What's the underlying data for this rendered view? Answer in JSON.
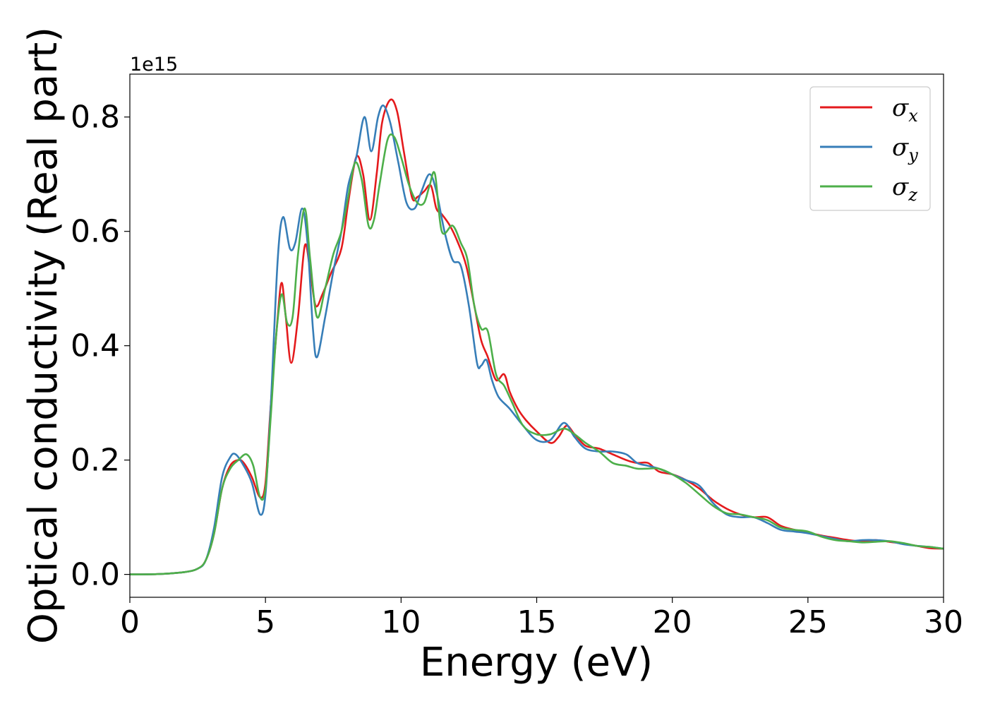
{
  "chart_data": {
    "type": "line",
    "xlabel": "Energy (eV)",
    "ylabel": "Optical conductivity (Real part)",
    "y_offset_label": "1e15",
    "xlim": [
      0,
      30
    ],
    "ylim": [
      -0.04,
      0.875
    ],
    "xticks": [
      "0",
      "5",
      "10",
      "15",
      "20",
      "25",
      "30"
    ],
    "xtick_values": [
      0,
      5,
      10,
      15,
      20,
      25,
      30
    ],
    "yticks": [
      "0.0",
      "0.2",
      "0.4",
      "0.6",
      "0.8"
    ],
    "ytick_values": [
      0.0,
      0.2,
      0.4,
      0.6,
      0.8
    ],
    "grid": false,
    "legend_position": "top-right",
    "series": [
      {
        "name": "σx",
        "symbol": "σ",
        "subscript": "x",
        "color": "#e41a1c",
        "x": [
          0,
          1,
          2,
          2.5,
          2.8,
          3.1,
          3.4,
          3.7,
          4.0,
          4.2,
          4.5,
          4.8,
          5.0,
          5.2,
          5.45,
          5.6,
          5.75,
          5.95,
          6.2,
          6.45,
          6.65,
          6.85,
          7.1,
          7.4,
          7.8,
          8.05,
          8.35,
          8.6,
          8.85,
          9.1,
          9.3,
          9.6,
          9.85,
          10.1,
          10.4,
          10.6,
          10.85,
          11.1,
          11.3,
          11.5,
          11.8,
          12.1,
          12.4,
          12.7,
          12.95,
          13.2,
          13.5,
          13.8,
          14.0,
          14.3,
          14.6,
          15.0,
          15.5,
          15.8,
          16.1,
          16.4,
          16.8,
          17.3,
          17.8,
          18.3,
          18.7,
          19.1,
          19.5,
          20.0,
          20.5,
          21.0,
          21.5,
          22.0,
          22.5,
          23.0,
          23.5,
          24.0,
          24.5,
          25.0,
          25.5,
          26.0,
          26.5,
          27.0,
          27.5,
          28.0,
          28.5,
          29.0,
          29.5,
          30.0
        ],
        "y": [
          0.0,
          0.0005,
          0.004,
          0.01,
          0.025,
          0.07,
          0.15,
          0.19,
          0.2,
          0.195,
          0.17,
          0.135,
          0.16,
          0.3,
          0.45,
          0.51,
          0.45,
          0.37,
          0.45,
          0.575,
          0.53,
          0.47,
          0.49,
          0.525,
          0.57,
          0.65,
          0.73,
          0.7,
          0.62,
          0.7,
          0.79,
          0.83,
          0.81,
          0.74,
          0.66,
          0.66,
          0.67,
          0.68,
          0.64,
          0.63,
          0.61,
          0.58,
          0.54,
          0.47,
          0.41,
          0.38,
          0.34,
          0.35,
          0.32,
          0.29,
          0.27,
          0.25,
          0.23,
          0.24,
          0.26,
          0.245,
          0.225,
          0.22,
          0.21,
          0.2,
          0.195,
          0.195,
          0.18,
          0.175,
          0.165,
          0.15,
          0.13,
          0.115,
          0.105,
          0.1,
          0.1,
          0.085,
          0.078,
          0.073,
          0.068,
          0.064,
          0.06,
          0.058,
          0.06,
          0.057,
          0.054,
          0.05,
          0.046,
          0.045
        ]
      },
      {
        "name": "σy",
        "symbol": "σ",
        "subscript": "y",
        "color": "#377eb8",
        "x": [
          0,
          1,
          2,
          2.5,
          2.8,
          3.1,
          3.4,
          3.7,
          3.9,
          4.2,
          4.5,
          4.8,
          5.0,
          5.2,
          5.45,
          5.65,
          5.9,
          6.1,
          6.35,
          6.55,
          6.75,
          6.9,
          7.2,
          7.5,
          7.8,
          8.05,
          8.35,
          8.65,
          8.9,
          9.15,
          9.35,
          9.6,
          9.9,
          10.2,
          10.5,
          10.75,
          11.05,
          11.3,
          11.6,
          11.9,
          12.2,
          12.5,
          12.8,
          12.95,
          13.15,
          13.35,
          13.6,
          14.0,
          14.5,
          15.0,
          15.5,
          16.0,
          16.4,
          16.8,
          17.3,
          17.8,
          18.3,
          18.7,
          19.1,
          19.5,
          20.0,
          20.5,
          21.0,
          21.5,
          22.0,
          22.5,
          23.0,
          23.5,
          24.0,
          24.5,
          25.0,
          25.5,
          26.0,
          26.5,
          27.0,
          27.5,
          28.0,
          28.5,
          29.0,
          29.5,
          30.0
        ],
        "y": [
          0.0,
          0.0005,
          0.004,
          0.01,
          0.025,
          0.08,
          0.17,
          0.205,
          0.21,
          0.19,
          0.16,
          0.105,
          0.14,
          0.3,
          0.55,
          0.625,
          0.57,
          0.58,
          0.64,
          0.58,
          0.43,
          0.38,
          0.45,
          0.53,
          0.6,
          0.68,
          0.73,
          0.8,
          0.74,
          0.8,
          0.82,
          0.79,
          0.72,
          0.65,
          0.64,
          0.67,
          0.7,
          0.67,
          0.6,
          0.55,
          0.54,
          0.47,
          0.37,
          0.365,
          0.375,
          0.34,
          0.31,
          0.29,
          0.26,
          0.235,
          0.235,
          0.265,
          0.24,
          0.22,
          0.215,
          0.215,
          0.21,
          0.195,
          0.19,
          0.185,
          0.175,
          0.165,
          0.155,
          0.125,
          0.105,
          0.1,
          0.1,
          0.09,
          0.078,
          0.075,
          0.072,
          0.067,
          0.062,
          0.058,
          0.06,
          0.06,
          0.058,
          0.053,
          0.05,
          0.048,
          0.045
        ]
      },
      {
        "name": "σz",
        "symbol": "σ",
        "subscript": "z",
        "color": "#4daf4a",
        "x": [
          0,
          1,
          2,
          2.5,
          2.8,
          3.1,
          3.4,
          3.7,
          4.0,
          4.3,
          4.55,
          4.8,
          5.0,
          5.2,
          5.4,
          5.6,
          5.8,
          6.0,
          6.2,
          6.45,
          6.65,
          6.9,
          7.2,
          7.5,
          7.8,
          8.05,
          8.3,
          8.55,
          8.8,
          9.0,
          9.2,
          9.5,
          9.75,
          10.0,
          10.3,
          10.6,
          10.85,
          11.05,
          11.25,
          11.5,
          11.9,
          12.2,
          12.45,
          12.7,
          12.95,
          13.2,
          13.5,
          13.8,
          14.1,
          14.5,
          15.0,
          15.5,
          16.0,
          16.4,
          16.8,
          17.3,
          17.8,
          18.3,
          18.7,
          19.1,
          19.5,
          20.0,
          20.5,
          21.0,
          21.5,
          22.0,
          22.5,
          23.0,
          23.5,
          24.0,
          24.5,
          25.0,
          25.5,
          26.0,
          26.5,
          27.0,
          27.5,
          28.0,
          28.5,
          29.0,
          29.5,
          30.0
        ],
        "y": [
          0.0,
          0.0005,
          0.004,
          0.01,
          0.025,
          0.07,
          0.15,
          0.185,
          0.2,
          0.21,
          0.19,
          0.135,
          0.15,
          0.28,
          0.42,
          0.49,
          0.44,
          0.45,
          0.56,
          0.64,
          0.55,
          0.45,
          0.5,
          0.56,
          0.6,
          0.66,
          0.72,
          0.69,
          0.61,
          0.62,
          0.68,
          0.76,
          0.765,
          0.73,
          0.68,
          0.65,
          0.65,
          0.68,
          0.7,
          0.6,
          0.61,
          0.58,
          0.55,
          0.47,
          0.43,
          0.425,
          0.35,
          0.33,
          0.3,
          0.26,
          0.245,
          0.245,
          0.255,
          0.245,
          0.23,
          0.215,
          0.195,
          0.19,
          0.185,
          0.185,
          0.185,
          0.175,
          0.16,
          0.14,
          0.12,
          0.107,
          0.105,
          0.1,
          0.095,
          0.082,
          0.078,
          0.075,
          0.066,
          0.06,
          0.058,
          0.056,
          0.057,
          0.058,
          0.055,
          0.05,
          0.048,
          0.045
        ]
      }
    ]
  }
}
